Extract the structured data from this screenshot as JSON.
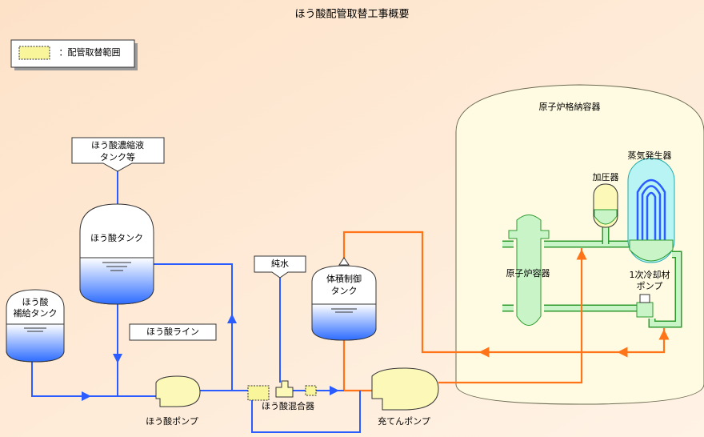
{
  "title": "ほう酸配管取替工事概要",
  "legend": {
    "label": "：配管取替範囲"
  },
  "containment": {
    "label": "原子炉格納容器"
  },
  "nodes": [
    {
      "label": [
        "蒸気発生器"
      ]
    },
    {
      "label": [
        "加圧器"
      ]
    },
    {
      "label": [
        "原子炉容器"
      ]
    },
    {
      "label": [
        "1次冷却材",
        "ポンプ"
      ]
    },
    {
      "label": [
        "ほう酸濃縮液",
        "タンク等"
      ]
    },
    {
      "label": [
        "ほう酸タンク"
      ]
    },
    {
      "label": [
        "ほう酸",
        "補給タンク"
      ]
    },
    {
      "label": [
        "ほう酸ライン"
      ]
    },
    {
      "label": [
        "純水"
      ]
    },
    {
      "label": [
        "体積制御",
        "タンク"
      ]
    },
    {
      "label": [
        "ほう酸ポンプ"
      ]
    },
    {
      "label": [
        "ほう酸混合器"
      ]
    },
    {
      "label": [
        "充てんポンプ"
      ]
    }
  ]
}
